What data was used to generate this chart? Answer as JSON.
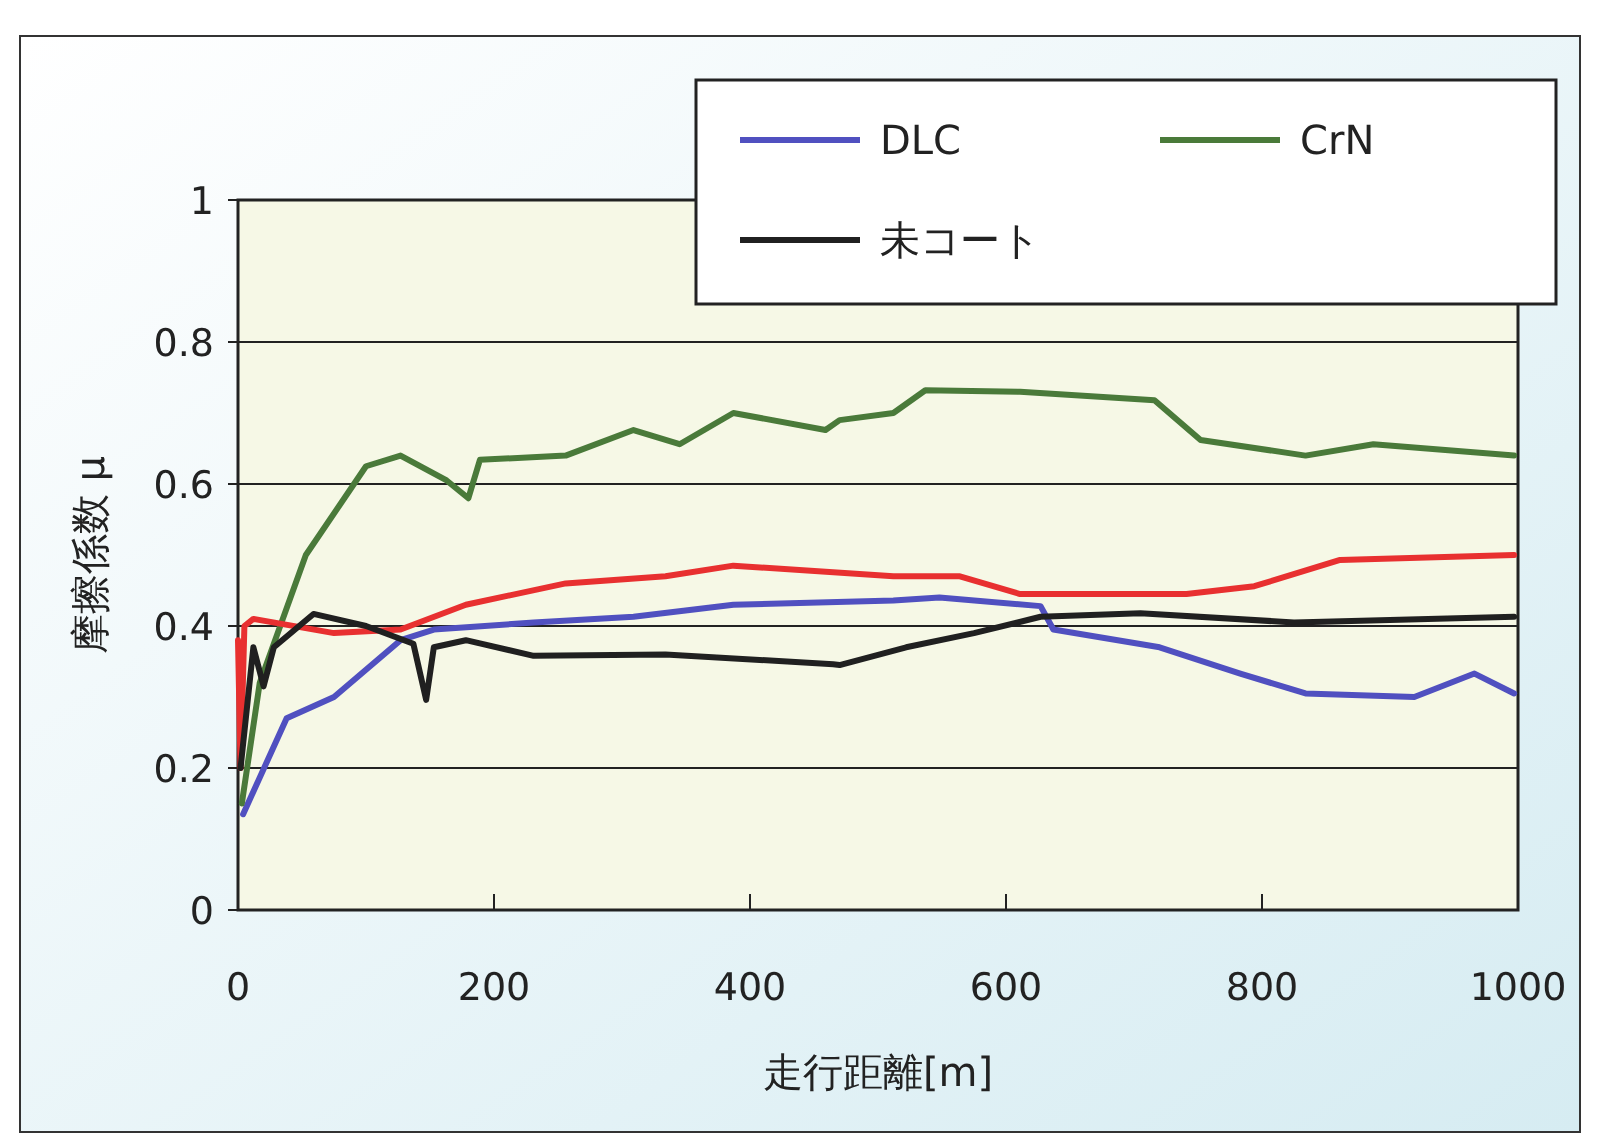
{
  "chart_data": {
    "type": "line",
    "xlabel": "走行距離[m]",
    "ylabel": "摩擦係数 μ",
    "xlim": [
      0,
      1000
    ],
    "xticks": [
      0,
      200,
      400,
      600,
      800,
      1000
    ],
    "ylim": [
      0,
      1
    ],
    "yticks": [
      0,
      0.2,
      0.4,
      0.6,
      0.8,
      1
    ],
    "grid": "y",
    "legend": "top right",
    "marker": "none",
    "line_style": "solid",
    "series": [
      {
        "name": "DLC",
        "color": "#5050c0",
        "x": [
          4,
          38,
          75,
          127,
          153,
          231,
          309,
          387,
          512,
          548,
          627,
          637,
          720,
          783,
          834,
          919,
          966,
          997
        ],
        "values": [
          0.135,
          0.27,
          0.3,
          0.38,
          0.395,
          0.405,
          0.413,
          0.43,
          0.436,
          0.44,
          0.428,
          0.395,
          0.37,
          0.333,
          0.305,
          0.3,
          0.333,
          0.305
        ]
      },
      {
        "name": "CrN",
        "color": "#4a7a3a",
        "x": [
          3,
          17,
          53,
          100,
          127,
          163,
          180,
          189,
          256,
          309,
          345,
          387,
          459,
          470,
          512,
          537,
          611,
          716,
          752,
          834,
          887,
          997
        ],
        "values": [
          0.15,
          0.32,
          0.5,
          0.625,
          0.64,
          0.605,
          0.58,
          0.634,
          0.64,
          0.676,
          0.656,
          0.7,
          0.676,
          0.69,
          0.7,
          0.732,
          0.73,
          0.718,
          0.662,
          0.64,
          0.656,
          0.64
        ]
      },
      {
        "color": "#e83030",
        "x": [
          0,
          2,
          5,
          12,
          75,
          127,
          178,
          256,
          334,
          387,
          512,
          564,
          611,
          741,
          794,
          861,
          997
        ],
        "values": [
          0.38,
          0.2,
          0.4,
          0.41,
          0.39,
          0.395,
          0.43,
          0.46,
          0.47,
          0.485,
          0.47,
          0.47,
          0.445,
          0.445,
          0.456,
          0.493,
          0.5
        ]
      },
      {
        "name": "未コート",
        "color": "#202020",
        "x": [
          2,
          12,
          20,
          28,
          59,
          100,
          137,
          147,
          153,
          178,
          231,
          334,
          465,
          470,
          522,
          575,
          627,
          705,
          825,
          997
        ],
        "values": [
          0.2,
          0.37,
          0.315,
          0.37,
          0.417,
          0.4,
          0.375,
          0.296,
          0.37,
          0.38,
          0.358,
          0.36,
          0.346,
          0.345,
          0.37,
          0.39,
          0.413,
          0.418,
          0.405,
          0.413
        ]
      }
    ]
  }
}
